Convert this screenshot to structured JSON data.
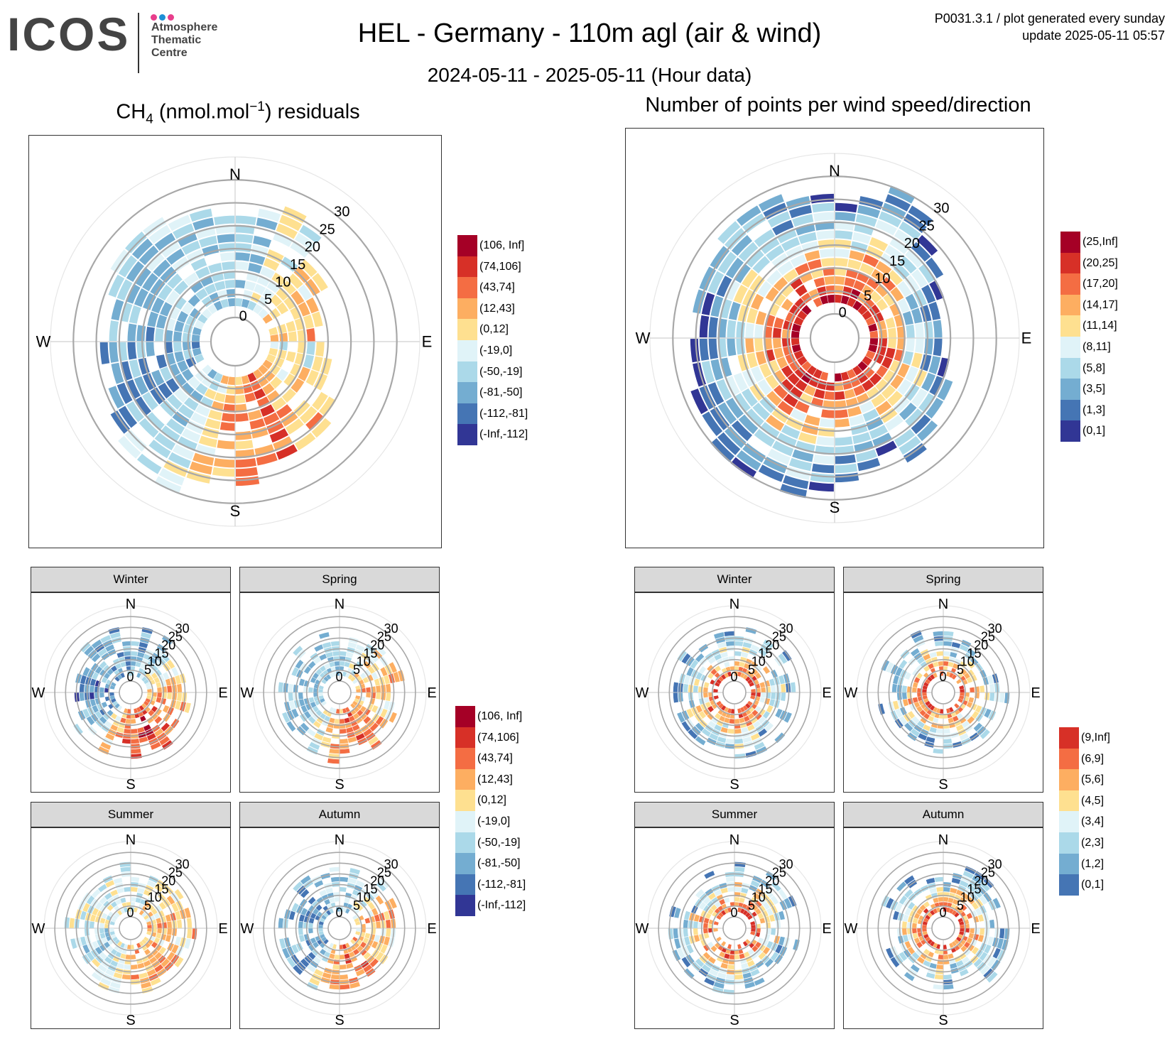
{
  "header": {
    "logo_text": "ICOS",
    "logo_subtitle": [
      "Atmosphere",
      "Thematic",
      "Centre"
    ],
    "logo_dot_colors": [
      "#e83e8c",
      "#1e8fd6",
      "#e83e8c"
    ],
    "title": "HEL - Germany - 110m agl (air & wind)",
    "subtitle": "2024-05-11 - 2025-05-11 (Hour data)",
    "meta_line1": "P0031.3.1 / plot generated every sunday",
    "meta_line2": "update  2025-05-11 05:57"
  },
  "left_panel": {
    "title_prefix": "CH",
    "title_sub": "4",
    "title_mid": " (nmol.mol",
    "title_sup": "−1",
    "title_suffix": ") residuals"
  },
  "right_panel": {
    "title": "Number of points per wind speed/direction"
  },
  "compass": {
    "n": "N",
    "e": "E",
    "s": "S",
    "w": "W"
  },
  "seasons": [
    "Winter",
    "Spring",
    "Summer",
    "Autumn"
  ],
  "legends": {
    "residuals": [
      {
        "label": "(106, Inf]",
        "color": "#a50026"
      },
      {
        "label": "(74,106]",
        "color": "#d73027"
      },
      {
        "label": "(43,74]",
        "color": "#f46d43"
      },
      {
        "label": "(12,43]",
        "color": "#fdae61"
      },
      {
        "label": "(0,12]",
        "color": "#fee090"
      },
      {
        "label": "(-19,0]",
        "color": "#e0f3f8"
      },
      {
        "label": "(-50,-19]",
        "color": "#abd9e9"
      },
      {
        "label": "(-81,-50]",
        "color": "#74add1"
      },
      {
        "label": "(-112,-81]",
        "color": "#4575b4"
      },
      {
        "label": "(-Inf,-112]",
        "color": "#313695"
      }
    ],
    "counts_year": [
      {
        "label": "(25,Inf]",
        "color": "#a50026"
      },
      {
        "label": "(20,25]",
        "color": "#d73027"
      },
      {
        "label": "(17,20]",
        "color": "#f46d43"
      },
      {
        "label": "(14,17]",
        "color": "#fdae61"
      },
      {
        "label": "(11,14]",
        "color": "#fee090"
      },
      {
        "label": "(8,11]",
        "color": "#e0f3f8"
      },
      {
        "label": "(5,8]",
        "color": "#abd9e9"
      },
      {
        "label": "(3,5]",
        "color": "#74add1"
      },
      {
        "label": "(1,3]",
        "color": "#4575b4"
      },
      {
        "label": "(0,1]",
        "color": "#313695"
      }
    ],
    "counts_season": [
      {
        "label": "(9,Inf]",
        "color": "#d73027"
      },
      {
        "label": "(6,9]",
        "color": "#f46d43"
      },
      {
        "label": "(5,6]",
        "color": "#fdae61"
      },
      {
        "label": "(4,5]",
        "color": "#fee090"
      },
      {
        "label": "(3,4]",
        "color": "#e0f3f8"
      },
      {
        "label": "(2,3]",
        "color": "#abd9e9"
      },
      {
        "label": "(1,2]",
        "color": "#74add1"
      },
      {
        "label": "(0,1]",
        "color": "#4575b4"
      }
    ]
  },
  "chart_data": [
    {
      "type": "polar-heatmap",
      "panel": "residuals-year",
      "radial_ticks": [
        0,
        5,
        10,
        15,
        20,
        25,
        30
      ],
      "radial_unit": "wind speed",
      "color_classes": [
        "(106, Inf]",
        "(74,106]",
        "(43,74]",
        "(12,43]",
        "(0,12]",
        "(-19,0]",
        "(-50,-19]",
        "(-81,-50]",
        "(-112,-81]",
        "(-Inf,-112]"
      ],
      "sector_dominant_class_index": [
        6,
        6,
        5,
        5,
        4,
        4,
        3,
        4,
        3,
        5,
        5,
        4,
        4,
        3,
        3,
        2,
        2,
        3,
        3,
        4,
        5,
        6,
        6,
        7,
        7,
        7,
        7,
        7,
        6,
        6,
        6,
        6,
        6,
        6,
        6,
        6
      ]
    },
    {
      "type": "polar-heatmap",
      "panel": "counts-year",
      "radial_ticks": [
        0,
        5,
        10,
        15,
        20,
        25,
        30
      ],
      "radial_unit": "wind speed",
      "color_classes": [
        "(25,Inf]",
        "(20,25]",
        "(17,20]",
        "(14,17]",
        "(11,14]",
        "(8,11]",
        "(5,8]",
        "(3,5]",
        "(1,3]",
        "(0,1]"
      ]
    },
    {
      "type": "polar-heatmap",
      "panel": "residuals-Winter",
      "radial_ticks": [
        0,
        5,
        10,
        15,
        20,
        25,
        30
      ]
    },
    {
      "type": "polar-heatmap",
      "panel": "residuals-Spring",
      "radial_ticks": [
        0,
        5,
        10,
        15,
        20,
        25,
        30
      ]
    },
    {
      "type": "polar-heatmap",
      "panel": "residuals-Summer",
      "radial_ticks": [
        0,
        5,
        10,
        15,
        20,
        25,
        30
      ]
    },
    {
      "type": "polar-heatmap",
      "panel": "residuals-Autumn",
      "radial_ticks": [
        0,
        5,
        10,
        15,
        20,
        25,
        30
      ]
    },
    {
      "type": "polar-heatmap",
      "panel": "counts-Winter",
      "radial_ticks": [
        0,
        5,
        10,
        15,
        20,
        25,
        30
      ]
    },
    {
      "type": "polar-heatmap",
      "panel": "counts-Spring",
      "radial_ticks": [
        0,
        5,
        10,
        15,
        20,
        25,
        30
      ]
    },
    {
      "type": "polar-heatmap",
      "panel": "counts-Summer",
      "radial_ticks": [
        0,
        5,
        10,
        15,
        20,
        25,
        30
      ]
    },
    {
      "type": "polar-heatmap",
      "panel": "counts-Autumn",
      "radial_ticks": [
        0,
        5,
        10,
        15,
        20,
        25,
        30
      ]
    }
  ]
}
